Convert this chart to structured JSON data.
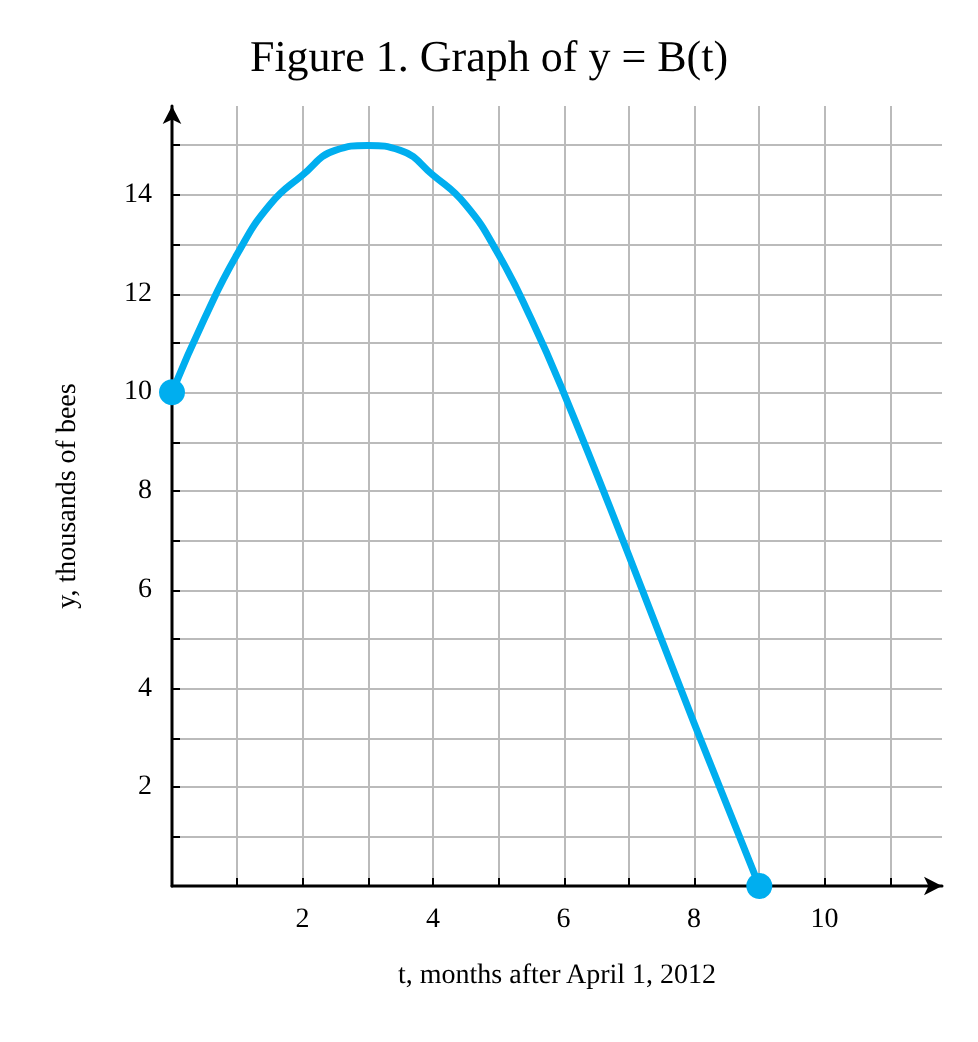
{
  "chart_data": {
    "type": "line",
    "title": "Figure 1. Graph of y = B(t)",
    "xlabel": "t, months after April 1, 2012",
    "ylabel": "y, thousands of bees",
    "series": [
      {
        "color": "#00aeef",
        "marker": "none",
        "x": [
          0,
          0.5,
          1,
          1.5,
          2,
          2.5,
          3,
          3.5,
          4,
          4.5,
          5,
          5.5,
          6,
          7,
          8,
          9
        ],
        "values": [
          10,
          11.5,
          12.8,
          13.8,
          14.4,
          14.9,
          15,
          14.9,
          14.4,
          13.8,
          12.8,
          11.5,
          10,
          6.7,
          3.3,
          0
        ]
      },
      {
        "type": "scatter",
        "color": "#00aeef",
        "marker": "circle",
        "x": [
          0,
          9
        ],
        "values": [
          10,
          0
        ]
      }
    ],
    "xlim": [
      0,
      11.8
    ],
    "ylim": [
      0,
      15.8
    ],
    "xticks": [
      {
        "value": 1,
        "label": null
      },
      2,
      {
        "value": 3,
        "label": null
      },
      4,
      {
        "value": 5,
        "label": null
      },
      6,
      {
        "value": 7,
        "label": null
      },
      8,
      {
        "value": 9,
        "label": null
      },
      10,
      {
        "value": 11,
        "label": null
      }
    ],
    "yticks": [
      {
        "value": 1,
        "label": null
      },
      2,
      {
        "value": 3,
        "label": null
      },
      4,
      {
        "value": 5,
        "label": null
      },
      6,
      {
        "value": 7,
        "label": null
      },
      8,
      {
        "value": 9,
        "label": null
      },
      10,
      {
        "value": 11,
        "label": null
      },
      12,
      {
        "value": 13,
        "label": null
      },
      14,
      {
        "value": 15,
        "label": null
      }
    ],
    "grid": true
  }
}
